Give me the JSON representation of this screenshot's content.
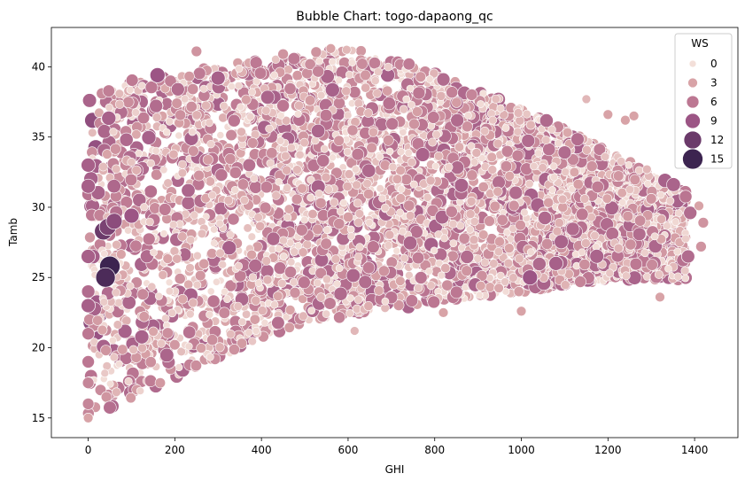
{
  "chart_data": {
    "type": "scatter",
    "title": "Bubble Chart: togo-dapaong_qc",
    "xlabel": "GHI",
    "ylabel": "Tamb",
    "xlim": [
      -85,
      1500
    ],
    "ylim": [
      13.6,
      42.8
    ],
    "x_ticks": [
      0,
      200,
      400,
      600,
      800,
      1000,
      1200,
      1400
    ],
    "y_ticks": [
      15,
      20,
      25,
      30,
      35,
      40
    ],
    "grid": false,
    "legend": {
      "title": "WS",
      "placement": "top-right",
      "entries": [
        {
          "label": "0",
          "ws": 0
        },
        {
          "label": "3",
          "ws": 3
        },
        {
          "label": "6",
          "ws": 6
        },
        {
          "label": "9",
          "ws": 9
        },
        {
          "label": "12",
          "ws": 12
        },
        {
          "label": "15",
          "ws": 15
        }
      ]
    },
    "hue_colors": [
      "#f3dfd9",
      "#d8a3a7",
      "#bc7792",
      "#9c5585",
      "#6b3a6a",
      "#3c2450"
    ],
    "size_range_ws": [
      0,
      15
    ],
    "points": [
      {
        "x": 50,
        "y": 25.8,
        "ws": 15
      },
      {
        "x": 40,
        "y": 25.0,
        "ws": 14
      },
      {
        "x": 35,
        "y": 28.3,
        "ws": 12
      },
      {
        "x": 45,
        "y": 28.6,
        "ws": 11
      },
      {
        "x": 160,
        "y": 39.4,
        "ws": 9
      },
      {
        "x": 100,
        "y": 29.4,
        "ws": 9
      },
      {
        "x": 60,
        "y": 29.0,
        "ws": 10
      },
      {
        "x": 0,
        "y": 31.5,
        "ws": 8
      },
      {
        "x": 0,
        "y": 33.0,
        "ws": 8
      },
      {
        "x": 0,
        "y": 26.5,
        "ws": 8
      },
      {
        "x": 0,
        "y": 24.0,
        "ws": 7
      },
      {
        "x": 0,
        "y": 23.0,
        "ws": 8
      },
      {
        "x": 0,
        "y": 21.0,
        "ws": 6
      },
      {
        "x": 0,
        "y": 19.0,
        "ws": 6
      },
      {
        "x": 0,
        "y": 17.5,
        "ws": 5
      },
      {
        "x": 0,
        "y": 16.0,
        "ws": 5
      },
      {
        "x": 0,
        "y": 15.0,
        "ws": 3
      },
      {
        "x": 300,
        "y": 39.2,
        "ws": 8
      },
      {
        "x": 820,
        "y": 39.1,
        "ws": 7
      },
      {
        "x": 1100,
        "y": 33.9,
        "ws": 7
      },
      {
        "x": 1080,
        "y": 26.0,
        "ws": 8
      },
      {
        "x": 1020,
        "y": 25.0,
        "ws": 9
      },
      {
        "x": 1390,
        "y": 29.6,
        "ws": 7
      },
      {
        "x": 1385,
        "y": 26.5,
        "ws": 7
      },
      {
        "x": 1300,
        "y": 30.6,
        "ws": 4
      },
      {
        "x": 1420,
        "y": 28.9,
        "ws": 4
      },
      {
        "x": 1415,
        "y": 27.2,
        "ws": 4
      },
      {
        "x": 1410,
        "y": 30.1,
        "ws": 3
      },
      {
        "x": 1320,
        "y": 23.6,
        "ws": 3
      },
      {
        "x": 1240,
        "y": 36.2,
        "ws": 3
      },
      {
        "x": 1260,
        "y": 36.5,
        "ws": 3
      },
      {
        "x": 1290,
        "y": 32.7,
        "ws": 2
      },
      {
        "x": 1000,
        "y": 22.6,
        "ws": 3
      },
      {
        "x": 820,
        "y": 22.5,
        "ws": 3
      },
      {
        "x": 615,
        "y": 21.2,
        "ws": 2
      },
      {
        "x": 560,
        "y": 41.3,
        "ws": 3
      },
      {
        "x": 250,
        "y": 41.1,
        "ws": 4
      },
      {
        "x": 450,
        "y": 40.9,
        "ws": 4
      },
      {
        "x": 1150,
        "y": 37.7,
        "ws": 2
      },
      {
        "x": 1200,
        "y": 36.6,
        "ws": 3
      }
    ]
  }
}
